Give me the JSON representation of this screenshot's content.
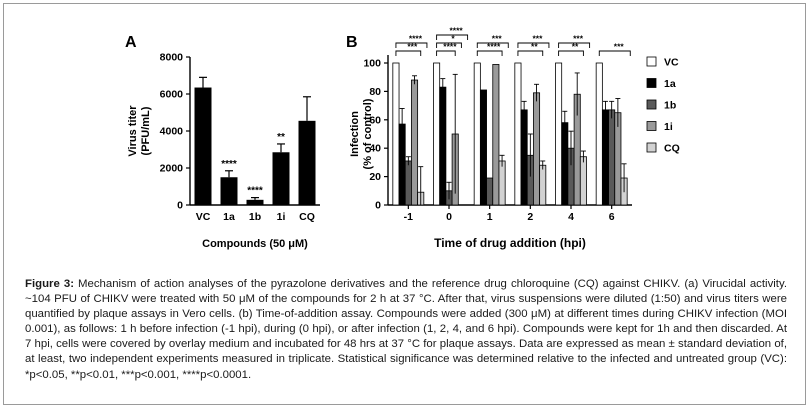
{
  "figure": {
    "caption_label": "Figure 3:",
    "caption_text": "Mechanism of action analyses of the pyrazolone derivatives and the reference drug chloroquine (CQ) against CHIKV. (a) Virucidal activity. ~104 PFU of CHIKV were treated with 50 μM of the compounds for 2 h at 37 °C. After that, virus suspensions were diluted (1:50) and virus titers were quantified by plaque assays in Vero cells. (b) Time-of-addition assay. Compounds were added (300 μM) at different times during CHIKV infection (MOI 0.001), as follows: 1 h before infection (-1 hpi), during (0 hpi), or after infection (1, 2, 4, and 6 hpi). Compounds were kept for 1h and then discarded. At 7 hpi, cells were covered by overlay medium and incubated for 48 hrs at 37 °C for plaque assays. Data are expressed as mean ± standard deviation of, at least, two independent experiments measured in triplicate. Statistical significance was determined relative to the infected and untreated group (VC): *p<0.05, **p<0.01, ***p<0.001, ****p<0.0001."
  },
  "chart_data": [
    {
      "panel": "A",
      "type": "bar",
      "xlabel": "Compounds (50 μM)",
      "ylabel": "Virus titer (PFU/mL)",
      "ylim": [
        0,
        8000
      ],
      "yticks": [
        "0",
        "2000",
        "4000",
        "6000",
        "8000"
      ],
      "categories": [
        "VC",
        "1a",
        "1b",
        "1i",
        "CQ"
      ],
      "values": [
        6350,
        1500,
        280,
        2850,
        4550
      ],
      "errors": [
        550,
        350,
        120,
        450,
        1300
      ],
      "significance": [
        "",
        "****",
        "****",
        "**",
        ""
      ],
      "bar_color": "#000000"
    },
    {
      "panel": "B",
      "type": "bar",
      "xlabel": "Time of drug addition (hpi)",
      "ylabel": "Infection (% of control)",
      "ylim": [
        0,
        100
      ],
      "yticks": [
        "0",
        "20",
        "40",
        "60",
        "80",
        "100"
      ],
      "categories": [
        "-1",
        "0",
        "1",
        "2",
        "4",
        "6"
      ],
      "series": [
        {
          "name": "VC",
          "color": "#ffffff",
          "values": [
            100,
            100,
            100,
            100,
            100,
            100
          ],
          "errors": [
            0,
            0,
            0,
            0,
            0,
            0
          ]
        },
        {
          "name": "1a",
          "color": "#000000",
          "values": [
            57,
            83,
            81,
            67,
            58,
            67
          ],
          "errors": [
            11,
            6,
            0,
            6,
            8,
            6
          ]
        },
        {
          "name": "1b",
          "color": "#5a5a5a",
          "values": [
            31,
            10,
            19,
            35,
            40,
            67
          ],
          "errors": [
            3,
            6,
            0,
            15,
            12,
            6
          ]
        },
        {
          "name": "1i",
          "color": "#9a9a9a",
          "values": [
            88,
            50,
            99,
            79,
            78,
            65
          ],
          "errors": [
            3,
            42,
            0,
            6,
            15,
            10
          ]
        },
        {
          "name": "CQ",
          "color": "#d2d2d2",
          "values": [
            9,
            0,
            31,
            28,
            34,
            19
          ],
          "errors": [
            18,
            0,
            4,
            3,
            4,
            10
          ]
        }
      ],
      "significance_brackets": [
        {
          "group": 0,
          "labels": [
            "***",
            "****"
          ]
        },
        {
          "group": 1,
          "labels": [
            "****",
            "*",
            "****"
          ]
        },
        {
          "group": 2,
          "labels": [
            "****",
            "***"
          ]
        },
        {
          "group": 3,
          "labels": [
            "**",
            "***"
          ]
        },
        {
          "group": 4,
          "labels": [
            "**",
            "***"
          ]
        },
        {
          "group": 5,
          "labels": [
            "***"
          ]
        }
      ]
    }
  ]
}
